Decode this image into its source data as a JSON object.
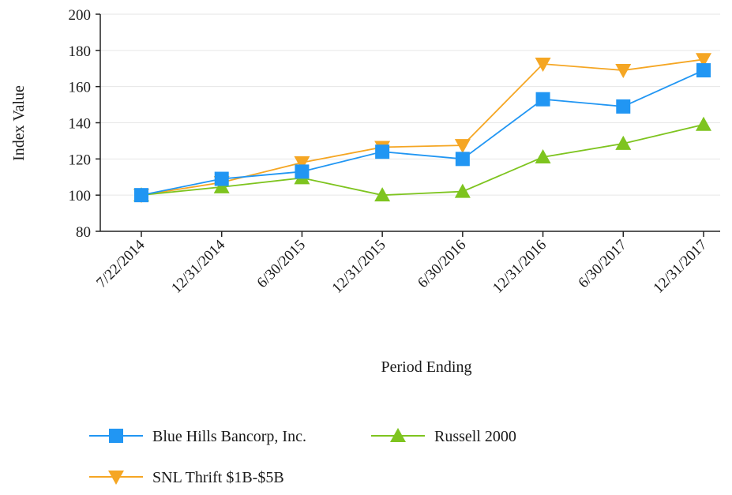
{
  "chart_data": {
    "type": "line",
    "title": "",
    "xlabel": "Period Ending",
    "ylabel": "Index Value",
    "ylim": [
      80,
      200
    ],
    "yticks": [
      80,
      100,
      120,
      140,
      160,
      180,
      200
    ],
    "grid": true,
    "legend_position": "bottom",
    "categories": [
      "7/22/2014",
      "12/31/2014",
      "6/30/2015",
      "12/31/2015",
      "6/30/2016",
      "12/31/2016",
      "6/30/2017",
      "12/31/2017"
    ],
    "series": [
      {
        "name": "Blue Hills Bancorp, Inc.",
        "color": "#2196f3",
        "marker": "square",
        "values": [
          100,
          109,
          113,
          124,
          120,
          153,
          149,
          169
        ]
      },
      {
        "name": "Russell 2000",
        "color": "#7ec41f",
        "marker": "triangle-up",
        "values": [
          100,
          104.5,
          109.5,
          100,
          102,
          121,
          128.5,
          139
        ]
      },
      {
        "name": "SNL Thrift $1B-$5B",
        "color": "#f5a623",
        "marker": "triangle-down",
        "values": [
          100,
          107,
          118,
          126.5,
          127.5,
          172.5,
          169,
          175
        ]
      }
    ]
  }
}
